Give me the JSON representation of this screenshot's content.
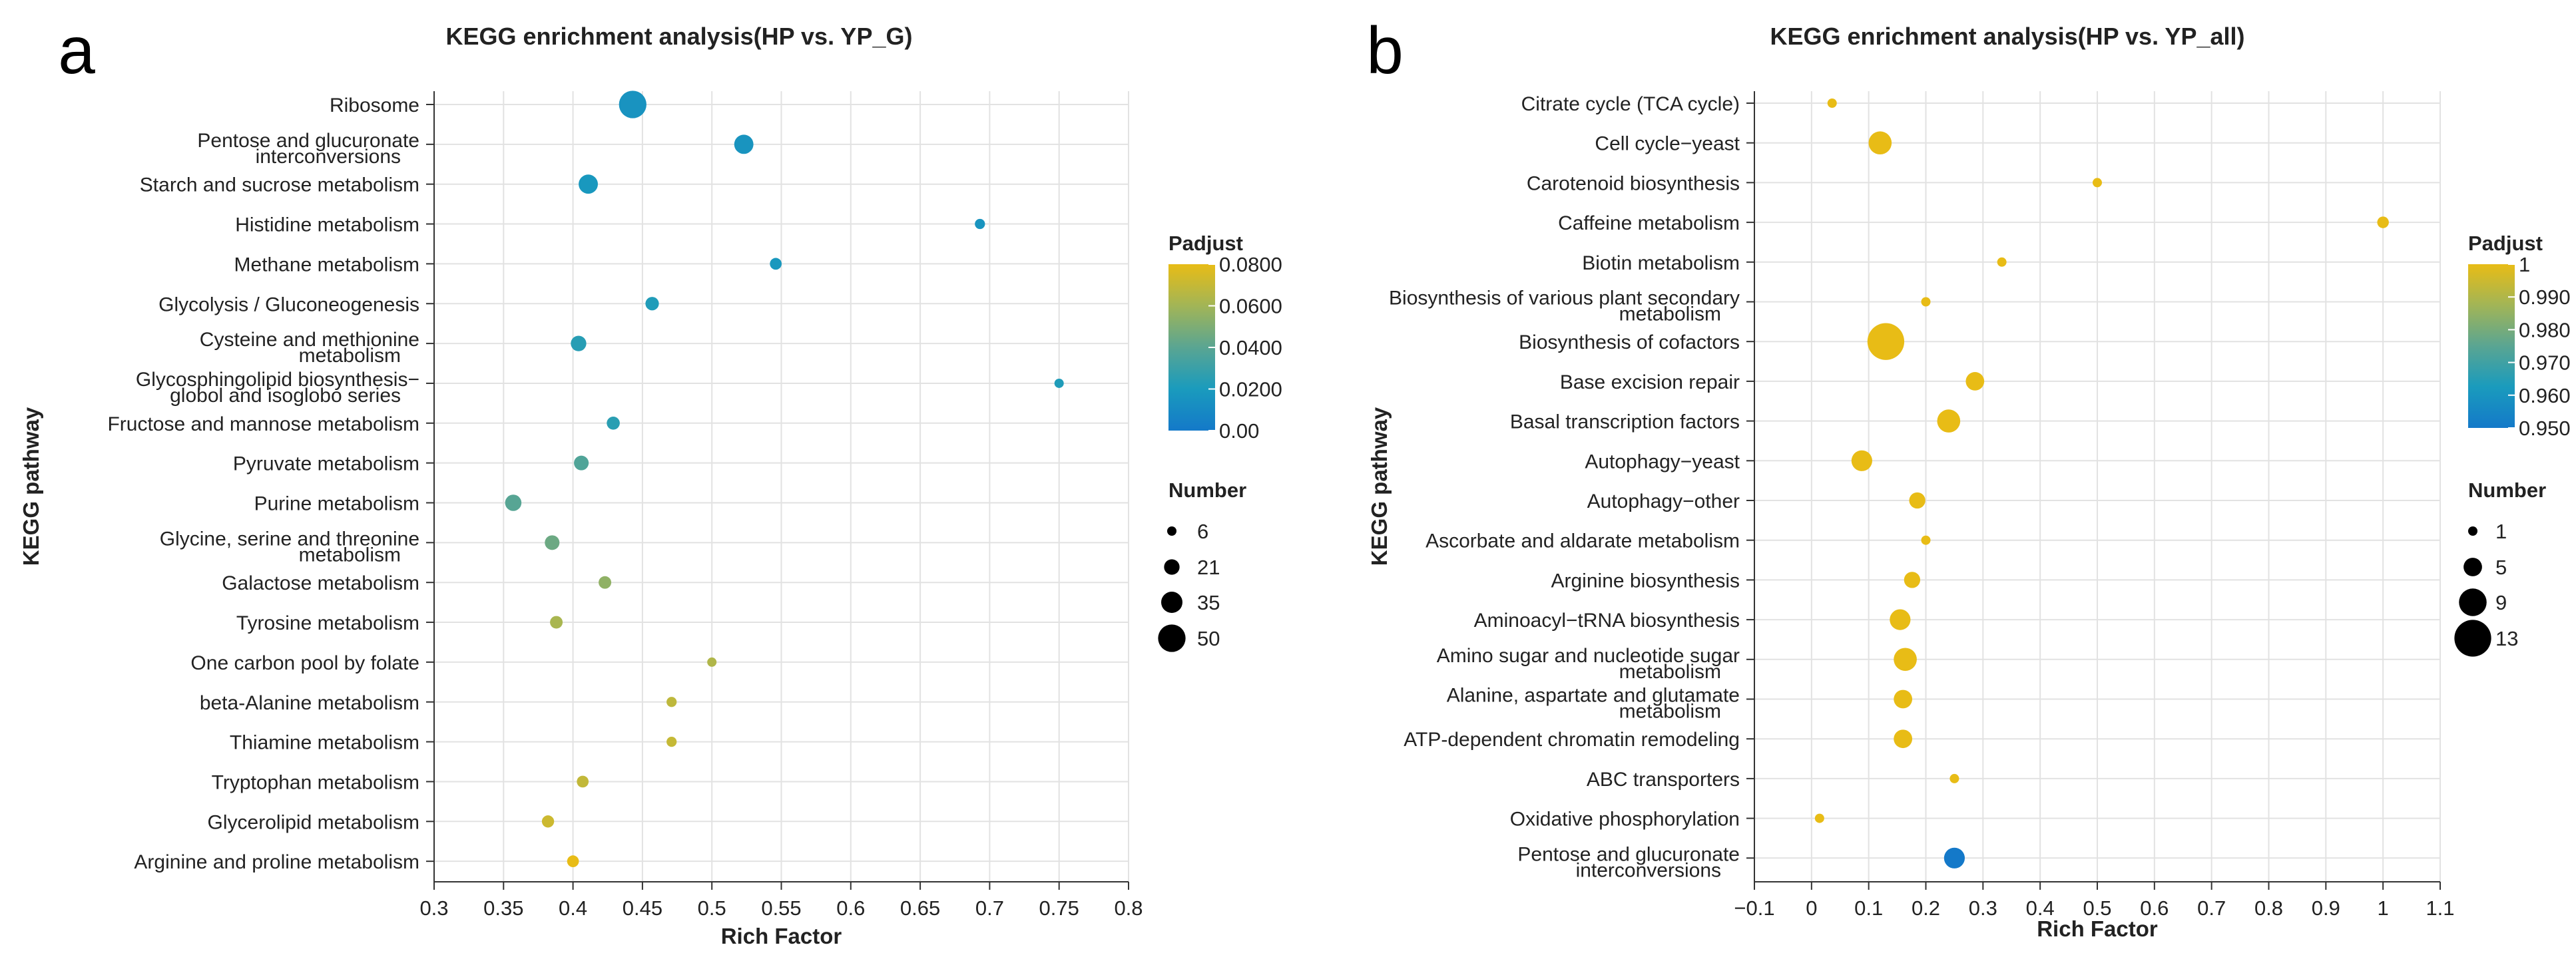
{
  "chart_data": [
    {
      "panel_label": "a",
      "type": "scatter",
      "title": "KEGG enrichment analysis(HP vs. YP_G)",
      "xlabel": "Rich Factor",
      "ylabel": "KEGG pathway",
      "xlim": [
        0.3,
        0.8
      ],
      "xticks": [
        "0.3",
        "0.35",
        "0.4",
        "0.45",
        "0.5",
        "0.55",
        "0.6",
        "0.65",
        "0.7",
        "0.75",
        "0.8"
      ],
      "grid": true,
      "color_legend": {
        "title": "Padjust",
        "ticks": [
          "0.0800",
          "0.0600",
          "0.0400",
          "0.0200",
          "0.00"
        ],
        "min": 0,
        "max": 0.08,
        "colors": [
          "#1479c9",
          "#1a9bbd",
          "#5aa592",
          "#a2b556",
          "#e8bc16"
        ]
      },
      "size_legend": {
        "title": "Number",
        "items": [
          "6",
          "21",
          "35",
          "50"
        ],
        "values": [
          6,
          21,
          35,
          50
        ]
      },
      "categories": [
        [
          "Ribosome"
        ],
        [
          "Pentose and glucuronate",
          "interconversions"
        ],
        [
          "Starch and sucrose metabolism"
        ],
        [
          "Histidine metabolism"
        ],
        [
          "Methane metabolism"
        ],
        [
          "Glycolysis / Gluconeogenesis"
        ],
        [
          "Cysteine and methionine",
          "metabolism"
        ],
        [
          "Glycosphingolipid biosynthesis−",
          "globol and isoglobo series"
        ],
        [
          "Fructose and mannose metabolism"
        ],
        [
          "Pyruvate metabolism"
        ],
        [
          "Purine metabolism"
        ],
        [
          "Glycine, serine and threonine",
          "metabolism"
        ],
        [
          "Galactose metabolism"
        ],
        [
          "Tyrosine metabolism"
        ],
        [
          "One carbon pool by folate"
        ],
        [
          "beta-Alanine metabolism"
        ],
        [
          "Thiamine metabolism"
        ],
        [
          "Tryptophan metabolism"
        ],
        [
          "Glycerolipid metabolism"
        ],
        [
          "Arginine and proline metabolism"
        ]
      ],
      "points": [
        {
          "x": 0.443,
          "number": 50,
          "padjust": 0.015
        },
        {
          "x": 0.523,
          "number": 30,
          "padjust": 0.016
        },
        {
          "x": 0.411,
          "number": 30,
          "padjust": 0.018
        },
        {
          "x": 0.693,
          "number": 8,
          "padjust": 0.016
        },
        {
          "x": 0.546,
          "number": 12,
          "padjust": 0.018
        },
        {
          "x": 0.457,
          "number": 16,
          "padjust": 0.022
        },
        {
          "x": 0.404,
          "number": 21,
          "padjust": 0.024
        },
        {
          "x": 0.75,
          "number": 6,
          "padjust": 0.022
        },
        {
          "x": 0.429,
          "number": 15,
          "padjust": 0.025
        },
        {
          "x": 0.406,
          "number": 19,
          "padjust": 0.037
        },
        {
          "x": 0.357,
          "number": 23,
          "padjust": 0.039
        },
        {
          "x": 0.385,
          "number": 19,
          "padjust": 0.045
        },
        {
          "x": 0.423,
          "number": 14,
          "padjust": 0.055
        },
        {
          "x": 0.388,
          "number": 14,
          "padjust": 0.062
        },
        {
          "x": 0.5,
          "number": 6,
          "padjust": 0.064
        },
        {
          "x": 0.471,
          "number": 8,
          "padjust": 0.068
        },
        {
          "x": 0.471,
          "number": 8,
          "padjust": 0.07
        },
        {
          "x": 0.407,
          "number": 12,
          "padjust": 0.069
        },
        {
          "x": 0.382,
          "number": 13,
          "padjust": 0.072
        },
        {
          "x": 0.4,
          "number": 12,
          "padjust": 0.08
        }
      ]
    },
    {
      "panel_label": "b",
      "type": "scatter",
      "title": "KEGG enrichment analysis(HP vs. YP_all)",
      "xlabel": "Rich Factor",
      "ylabel": "KEGG pathway",
      "xlim": [
        -0.1,
        1.1
      ],
      "xticks": [
        "−0.1",
        "0",
        "0.1",
        "0.2",
        "0.3",
        "0.4",
        "0.5",
        "0.6",
        "0.7",
        "0.8",
        "0.9",
        "1",
        "1.1"
      ],
      "grid": true,
      "color_legend": {
        "title": "Padjust",
        "ticks": [
          "1",
          "0.990",
          "0.980",
          "0.970",
          "0.960",
          "0.950"
        ],
        "min": 0.95,
        "max": 1,
        "colors": [
          "#1479c9",
          "#1a9bbd",
          "#5aa592",
          "#a2b556",
          "#e8bc16"
        ]
      },
      "size_legend": {
        "title": "Number",
        "items": [
          "1",
          "5",
          "9",
          "13"
        ],
        "values": [
          1,
          5,
          9,
          13
        ]
      },
      "categories": [
        [
          "Citrate cycle (TCA cycle)"
        ],
        [
          "Cell cycle−yeast"
        ],
        [
          "Carotenoid biosynthesis"
        ],
        [
          "Caffeine metabolism"
        ],
        [
          "Biotin metabolism"
        ],
        [
          "Biosynthesis of various plant secondary",
          "metabolism"
        ],
        [
          "Biosynthesis of cofactors"
        ],
        [
          "Base excision repair"
        ],
        [
          "Basal transcription factors"
        ],
        [
          "Autophagy−yeast"
        ],
        [
          "Autophagy−other"
        ],
        [
          "Ascorbate and aldarate metabolism"
        ],
        [
          "Arginine biosynthesis"
        ],
        [
          "Aminoacyl−tRNA biosynthesis"
        ],
        [
          "Amino sugar and nucleotide sugar",
          "metabolism"
        ],
        [
          "Alanine, aspartate and glutamate",
          "metabolism"
        ],
        [
          "ATP-dependent chromatin remodeling"
        ],
        [
          "ABC transporters"
        ],
        [
          "Oxidative phosphorylation"
        ],
        [
          "Pentose and glucuronate",
          "interconversions"
        ]
      ],
      "points": [
        {
          "x": 0.036,
          "number": 1,
          "padjust": 1
        },
        {
          "x": 0.12,
          "number": 7,
          "padjust": 1
        },
        {
          "x": 0.5,
          "number": 1,
          "padjust": 1
        },
        {
          "x": 1.0,
          "number": 2,
          "padjust": 1
        },
        {
          "x": 0.333,
          "number": 1,
          "padjust": 1
        },
        {
          "x": 0.2,
          "number": 1,
          "padjust": 1
        },
        {
          "x": 0.13,
          "number": 13,
          "padjust": 1
        },
        {
          "x": 0.286,
          "number": 5,
          "padjust": 1
        },
        {
          "x": 0.24,
          "number": 7,
          "padjust": 1
        },
        {
          "x": 0.088,
          "number": 6,
          "padjust": 1
        },
        {
          "x": 0.185,
          "number": 4,
          "padjust": 1
        },
        {
          "x": 0.2,
          "number": 1,
          "padjust": 1
        },
        {
          "x": 0.176,
          "number": 4,
          "padjust": 1
        },
        {
          "x": 0.155,
          "number": 6,
          "padjust": 1
        },
        {
          "x": 0.164,
          "number": 7,
          "padjust": 1
        },
        {
          "x": 0.16,
          "number": 5,
          "padjust": 1
        },
        {
          "x": 0.16,
          "number": 5,
          "padjust": 1
        },
        {
          "x": 0.25,
          "number": 1,
          "padjust": 1
        },
        {
          "x": 0.014,
          "number": 1,
          "padjust": 1
        },
        {
          "x": 0.25,
          "number": 6,
          "padjust": 0.95
        }
      ]
    }
  ]
}
